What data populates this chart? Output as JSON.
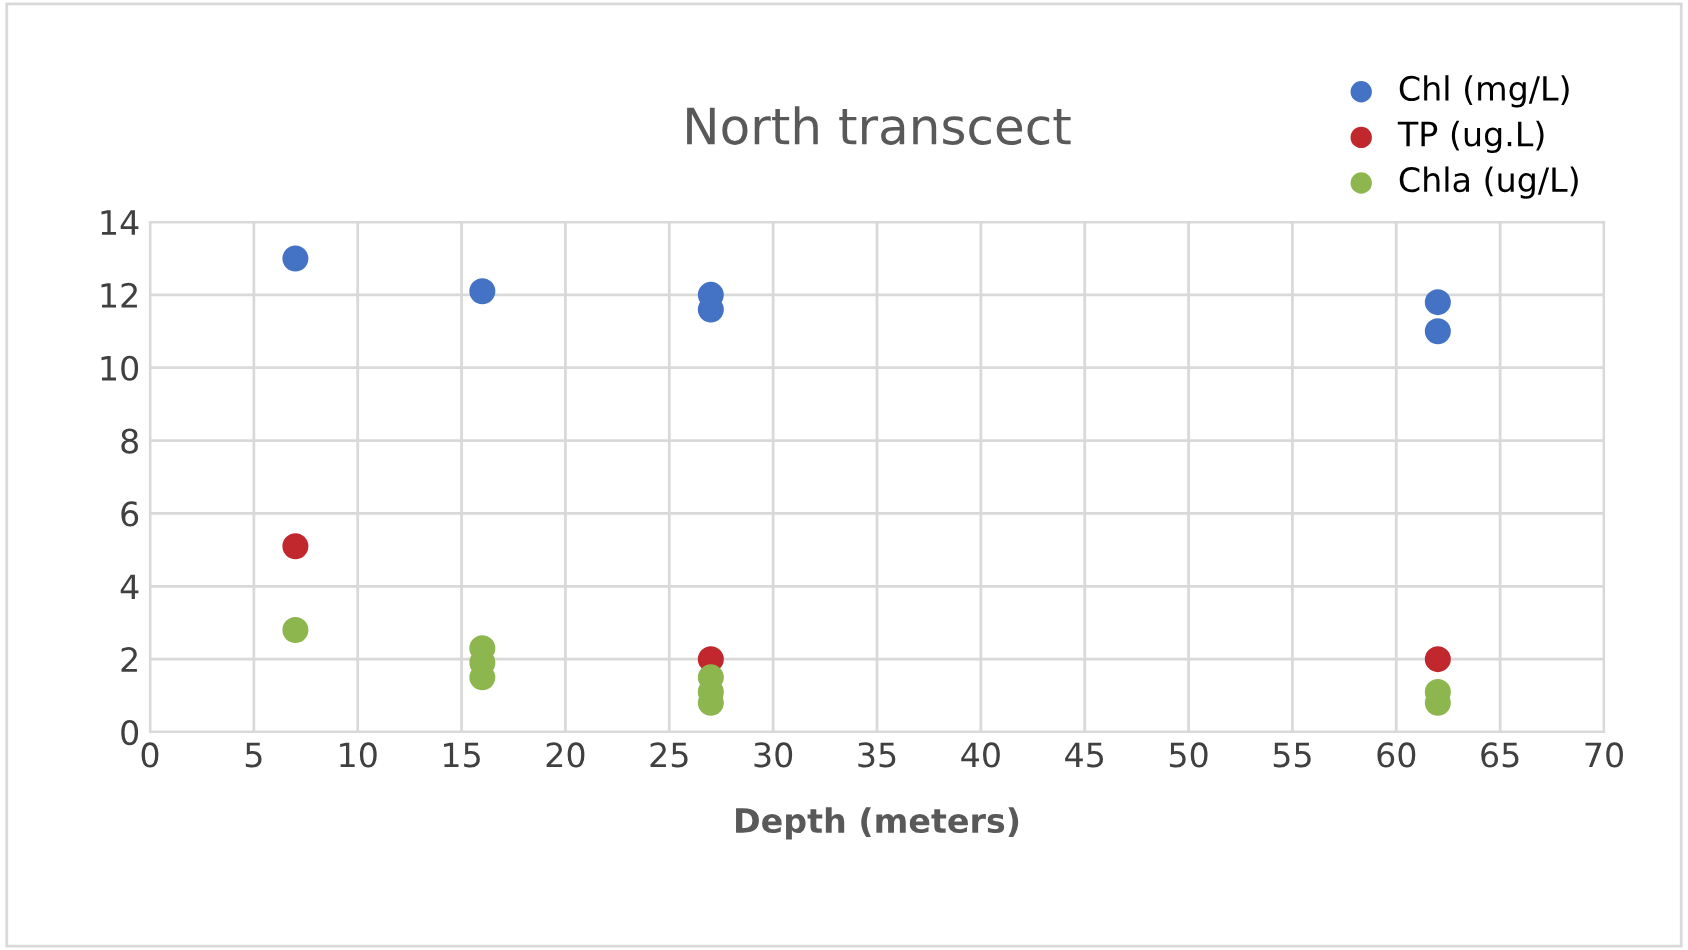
{
  "chart_data": {
    "type": "scatter",
    "title": "North transcect",
    "xlabel": "Depth (meters)",
    "series": [
      {
        "name": "Chl (mg/L)",
        "color": "#4472c4",
        "x": [
          7,
          16,
          27,
          27,
          62,
          62
        ],
        "values": [
          13,
          12.1,
          12,
          11.6,
          11.8,
          11
        ]
      },
      {
        "name": "TP (ug.L)",
        "color": "#c0282d",
        "x": [
          7,
          16,
          27,
          62
        ],
        "values": [
          5.1,
          null,
          2,
          2
        ]
      },
      {
        "name": "Chla (ug/L)",
        "color": "#8db64f",
        "x": [
          7,
          16,
          16,
          16,
          27,
          27,
          27,
          62,
          62
        ],
        "values": [
          2.8,
          2.3,
          1.9,
          1.5,
          1.5,
          1.1,
          0.8,
          1.1,
          0.8
        ]
      }
    ],
    "xlim": [
      0,
      70
    ],
    "xticks": [
      0,
      5,
      10,
      15,
      20,
      25,
      30,
      35,
      40,
      45,
      50,
      55,
      60,
      65,
      70
    ],
    "ylim": [
      0,
      14
    ],
    "yticks": [
      0,
      2,
      4,
      6,
      8,
      10,
      12,
      14
    ],
    "grid": true,
    "legend": "top right",
    "marker": "circle"
  }
}
